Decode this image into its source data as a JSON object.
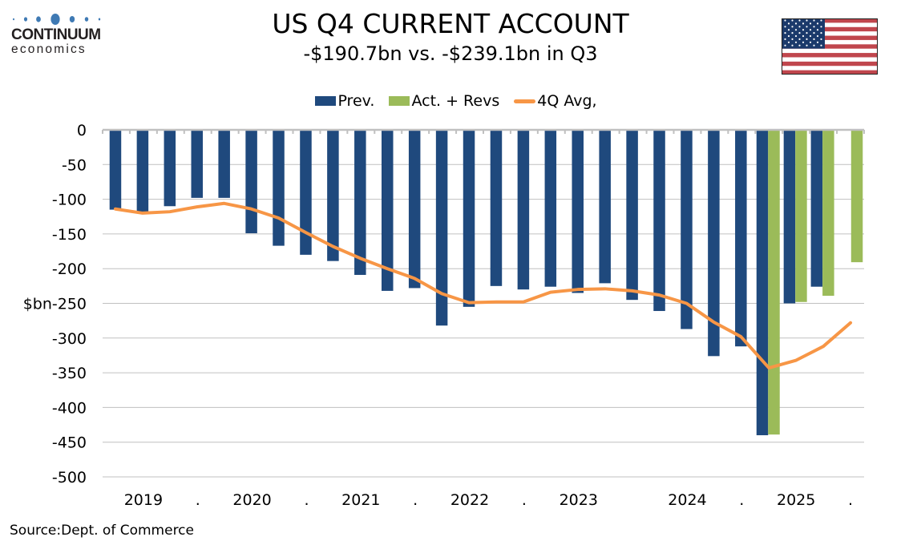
{
  "brand": {
    "name_line1": "CONTINUUM",
    "name_line2": "economics",
    "dot_color": "#3f7ab4"
  },
  "header": {
    "title": "US Q4  CURRENT ACCOUNT",
    "subtitle": "-$190.7bn vs. -$239.1bn in Q3",
    "flag": "us-flag"
  },
  "source": "Source:Dept. of Commerce",
  "colors": {
    "prev": "#1f497d",
    "act": "#9bbb59",
    "avg": "#f79646",
    "grid": "#c0c0c0"
  },
  "chart_data": {
    "type": "bar",
    "title": "US Q4  CURRENT ACCOUNT",
    "subtitle": "-$190.7bn vs. -$239.1bn in Q3",
    "xlabel": "",
    "ylabel": "$bn",
    "ylim": [
      -500,
      0
    ],
    "yticks": [
      0,
      -50,
      -100,
      -150,
      -200,
      -250,
      -300,
      -350,
      -400,
      -450,
      -500
    ],
    "ytick_labels": [
      "0",
      "-50",
      "-100",
      "-150",
      "-200",
      "$bn-250",
      "-300",
      "-350",
      "-400",
      "-450",
      "-500"
    ],
    "grid": true,
    "legend_position": "top-center",
    "categories": [
      "2019Q1",
      "2019Q2",
      "2019Q3",
      "2019Q4",
      "2020Q1",
      "2020Q2",
      "2020Q3",
      "2020Q4",
      "2021Q1",
      "2021Q2",
      "2021Q3",
      "2021Q4",
      "2022Q1",
      "2022Q2",
      "2022Q3",
      "2022Q4",
      "2023Q1",
      "2023Q2",
      "2023Q3",
      "2023Q4",
      "2024Q1",
      "2024Q2",
      "2024Q3",
      "2024Q4",
      "2025Q1",
      "2025Q2",
      "2025Q3",
      "2025Q4"
    ],
    "x_tick_labels": [
      {
        "label": "2019",
        "at": 1.5
      },
      {
        "label": ".",
        "at": 3.5
      },
      {
        "label": "2020",
        "at": 5.5
      },
      {
        "label": ".",
        "at": 7.5
      },
      {
        "label": "2021",
        "at": 9.5
      },
      {
        "label": ".",
        "at": 11.5
      },
      {
        "label": "2022",
        "at": 13.5
      },
      {
        "label": ".",
        "at": 15.5
      },
      {
        "label": "2023",
        "at": 17.5
      },
      {
        "label": "2024",
        "at": 21.5
      },
      {
        "label": ".",
        "at": 23.5
      },
      {
        "label": "2025",
        "at": 25.5
      },
      {
        "label": ".",
        "at": 27.5
      }
    ],
    "series": [
      {
        "name": "Prev.",
        "type": "bar",
        "values": [
          -115,
          -118,
          -110,
          -98,
          -98,
          -149,
          -167,
          -180,
          -189,
          -209,
          -232,
          -228,
          -282,
          -255,
          -225,
          -230,
          -226,
          -235,
          -221,
          -245,
          -261,
          -287,
          -326,
          -312,
          -440,
          -250,
          -226,
          null
        ]
      },
      {
        "name": "Act. + Revs",
        "type": "bar",
        "values": [
          null,
          null,
          null,
          null,
          null,
          null,
          null,
          null,
          null,
          null,
          null,
          null,
          null,
          null,
          null,
          null,
          null,
          null,
          null,
          null,
          null,
          null,
          null,
          null,
          -439,
          -248,
          -239.1,
          -190.7
        ]
      },
      {
        "name": "4Q Avg,",
        "type": "line",
        "values": [
          -114,
          -120,
          -118,
          -111,
          -106,
          -114,
          -127,
          -148,
          -168,
          -185,
          -200,
          -214,
          -236,
          -249,
          -248,
          -248,
          -234,
          -230,
          -229,
          -232,
          -238,
          -250,
          -277,
          -298,
          -343,
          -332,
          -312,
          -278
        ]
      }
    ]
  }
}
